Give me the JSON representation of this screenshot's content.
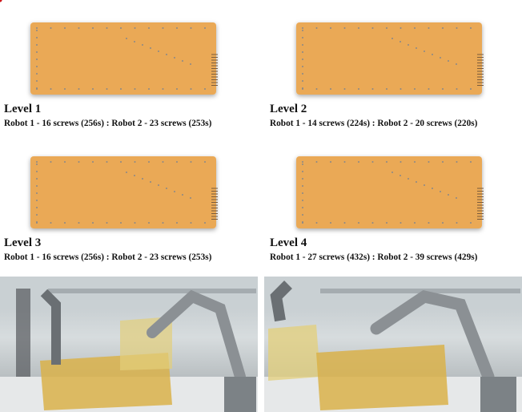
{
  "panels": [
    {
      "title": "Level 1",
      "caption": "Robot 1 - 16 screws (256s) : Robot 2 - 23 screws (253s)"
    },
    {
      "title": "Level 2",
      "caption": "Robot 1 - 14 screws (224s) : Robot 2 - 20 screws (220s)"
    },
    {
      "title": "Level 3",
      "caption": "Robot 1 - 16 screws (256s) : Robot 2 - 23 screws (253s)"
    },
    {
      "title": "Level 4",
      "caption": "Robot 1 - 27 screws (432s) : Robot 2 - 39 screws (429s)"
    }
  ]
}
